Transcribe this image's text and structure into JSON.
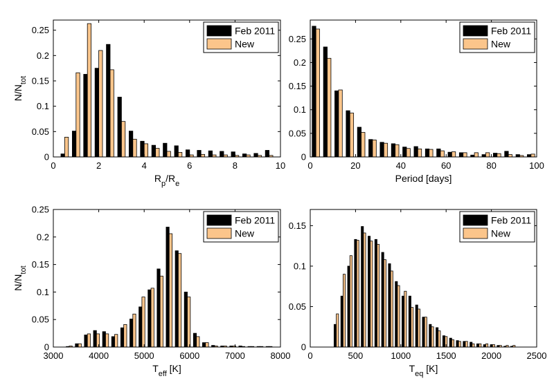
{
  "chart_data": [
    {
      "type": "bar",
      "xlabel": "R_p/R_e",
      "xlabel_main": "R",
      "xlabel_sub1": "p",
      "xlabel_mid": "/R",
      "xlabel_sub2": "e",
      "ylabel": "N/N_tot",
      "ylabel_main": "N/N",
      "ylabel_sub": "tot",
      "xlim": [
        0,
        10
      ],
      "ylim": [
        0,
        0.27
      ],
      "xticks": [
        0,
        2,
        4,
        6,
        8,
        10
      ],
      "yticks": [
        0,
        0.05,
        0.1,
        0.15,
        0.2,
        0.25
      ],
      "x": [
        0.5,
        1.0,
        1.5,
        2.0,
        2.5,
        3.0,
        3.5,
        4.0,
        4.5,
        5.0,
        5.5,
        6.0,
        6.5,
        7.0,
        7.5,
        8.0,
        8.5,
        9.0,
        9.5
      ],
      "series": [
        {
          "name": "Feb 2011",
          "color": "#000000",
          "values": [
            0.006,
            0.051,
            0.163,
            0.175,
            0.222,
            0.118,
            0.051,
            0.031,
            0.023,
            0.027,
            0.022,
            0.014,
            0.013,
            0.012,
            0.011,
            0.01,
            0.006,
            0.007,
            0.013
          ]
        },
        {
          "name": "New",
          "color": "#fbc58b",
          "values": [
            0.039,
            0.166,
            0.263,
            0.21,
            0.172,
            0.07,
            0.035,
            0.026,
            0.017,
            0.011,
            0.009,
            0.004,
            0.005,
            0.004,
            0.004,
            0.003,
            0.004,
            0.003,
            0.003
          ]
        }
      ]
    },
    {
      "type": "bar",
      "xlabel": "Period [days]",
      "ylabel": "",
      "xlim": [
        0,
        100
      ],
      "ylim": [
        0,
        0.29
      ],
      "xticks": [
        0,
        20,
        40,
        60,
        80,
        100
      ],
      "yticks": [
        0,
        0.05,
        0.1,
        0.15,
        0.2,
        0.25
      ],
      "x": [
        2.5,
        7.5,
        12.5,
        17.5,
        22.5,
        27.5,
        32.5,
        37.5,
        42.5,
        47.5,
        52.5,
        57.5,
        62.5,
        67.5,
        72.5,
        77.5,
        82.5,
        87.5,
        92.5,
        97.5
      ],
      "series": [
        {
          "name": "Feb 2011",
          "color": "#000000",
          "values": [
            0.277,
            0.233,
            0.14,
            0.098,
            0.063,
            0.037,
            0.031,
            0.028,
            0.021,
            0.022,
            0.017,
            0.017,
            0.01,
            0.009,
            0.004,
            0.005,
            0.008,
            0.012,
            0.005,
            0.005
          ]
        },
        {
          "name": "New",
          "color": "#fbc58b",
          "values": [
            0.271,
            0.209,
            0.142,
            0.093,
            0.052,
            0.036,
            0.029,
            0.026,
            0.018,
            0.017,
            0.016,
            0.013,
            0.011,
            0.009,
            0.009,
            0.009,
            0.007,
            0.005,
            0.003,
            0.006
          ]
        }
      ]
    },
    {
      "type": "bar",
      "xlabel": "T_eff [K]",
      "xlabel_main": "T",
      "xlabel_sub": "eff",
      "xlabel_suffix": " [K]",
      "ylabel": "N/N_tot",
      "ylabel_main": "N/N",
      "ylabel_sub": "tot",
      "xlim": [
        3000,
        8000
      ],
      "ylim": [
        0,
        0.25
      ],
      "xticks": [
        3000,
        4000,
        5000,
        6000,
        7000,
        8000
      ],
      "yticks": [
        0,
        0.05,
        0.1,
        0.15,
        0.2,
        0.25
      ],
      "x": [
        3350,
        3550,
        3750,
        3950,
        4150,
        4350,
        4550,
        4750,
        4950,
        5150,
        5350,
        5550,
        5750,
        5950,
        6150,
        6350,
        6550,
        6750,
        6950,
        7150,
        7350,
        7550,
        7750
      ],
      "series": [
        {
          "name": "Feb 2011",
          "color": "#000000",
          "values": [
            0.001,
            0.006,
            0.022,
            0.03,
            0.028,
            0.019,
            0.035,
            0.051,
            0.073,
            0.104,
            0.142,
            0.218,
            0.175,
            0.1,
            0.025,
            0.008,
            0.003,
            0.002,
            0.002,
            0.002,
            0.001,
            0.001,
            0.001
          ]
        },
        {
          "name": "New",
          "color": "#fbc58b",
          "values": [
            0.002,
            0.006,
            0.024,
            0.024,
            0.024,
            0.023,
            0.041,
            0.06,
            0.091,
            0.107,
            0.129,
            0.206,
            0.17,
            0.091,
            0.019,
            0.008,
            0.002,
            0.002,
            0.002,
            0.001,
            0.001,
            0.001,
            0.001
          ]
        }
      ]
    },
    {
      "type": "bar",
      "xlabel": "T_eq [K]",
      "xlabel_main": "T",
      "xlabel_sub": "eq",
      "xlabel_suffix": " [K]",
      "ylabel": "",
      "xlim": [
        0,
        2500
      ],
      "ylim": [
        0,
        0.17
      ],
      "xticks": [
        0,
        500,
        1000,
        1500,
        2000,
        2500
      ],
      "yticks": [
        0,
        0.05,
        0.1,
        0.15
      ],
      "x": [
        287.5,
        362.5,
        437.5,
        512.5,
        587.5,
        662.5,
        737.5,
        812.5,
        887.5,
        962.5,
        1037.5,
        1112.5,
        1187.5,
        1262.5,
        1337.5,
        1412.5,
        1487.5,
        1562.5,
        1637.5,
        1712.5,
        1787.5,
        1862.5,
        1937.5,
        2012.5,
        2087.5,
        2162.5,
        2237.5
      ],
      "series": [
        {
          "name": "Feb 2011",
          "color": "#000000",
          "values": [
            0.028,
            0.063,
            0.1,
            0.133,
            0.149,
            0.137,
            0.133,
            0.117,
            0.103,
            0.081,
            0.063,
            0.063,
            0.052,
            0.037,
            0.028,
            0.024,
            0.014,
            0.011,
            0.008,
            0.007,
            0.006,
            0.004,
            0.003,
            0.003,
            0.002,
            0.001,
            0.001
          ]
        },
        {
          "name": "New",
          "color": "#fbc58b",
          "values": [
            0.041,
            0.09,
            0.113,
            0.132,
            0.141,
            0.131,
            0.127,
            0.108,
            0.094,
            0.076,
            0.069,
            0.049,
            0.047,
            0.037,
            0.025,
            0.02,
            0.013,
            0.009,
            0.007,
            0.007,
            0.004,
            0.004,
            0.004,
            0.003,
            0.002,
            0.002,
            0.002
          ]
        }
      ]
    }
  ]
}
